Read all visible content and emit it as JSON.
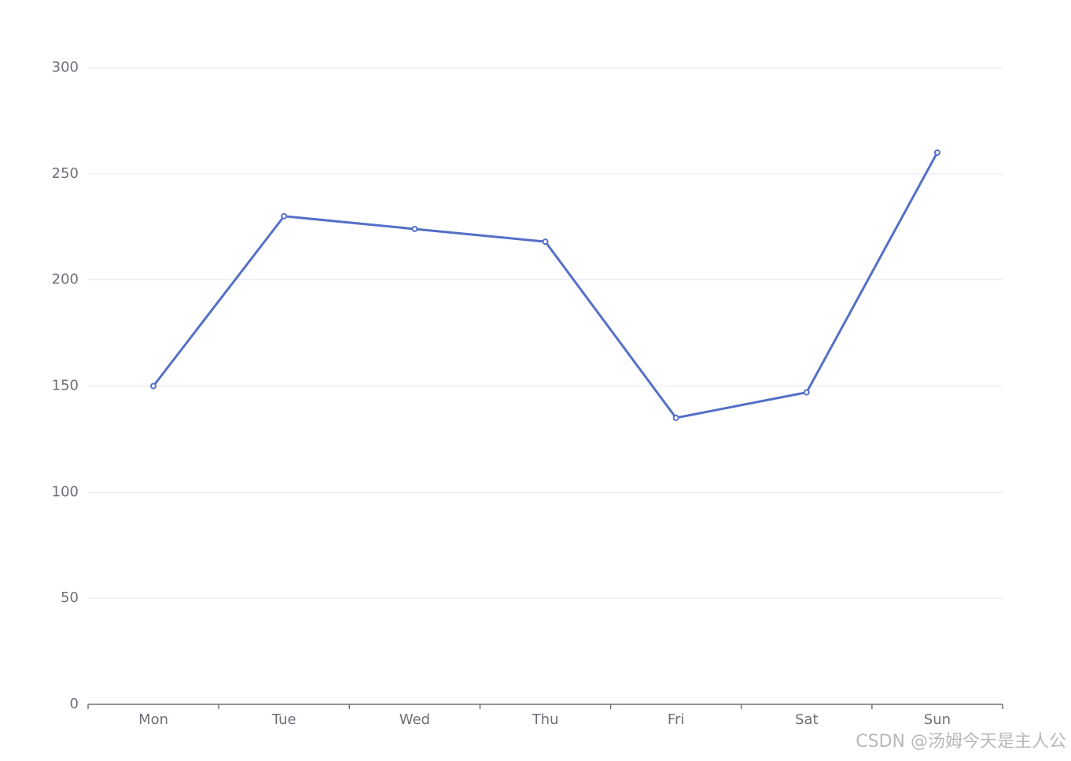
{
  "chart_data": {
    "type": "line",
    "categories": [
      "Mon",
      "Tue",
      "Wed",
      "Thu",
      "Fri",
      "Sat",
      "Sun"
    ],
    "values": [
      150,
      230,
      224,
      218,
      135,
      147,
      260
    ],
    "color": "#5470c6",
    "ylim": [
      0,
      300
    ],
    "yticks": [
      0,
      50,
      100,
      150,
      200,
      250,
      300
    ],
    "grid": true
  },
  "watermark": "CSDN @汤姆今天是主人公"
}
